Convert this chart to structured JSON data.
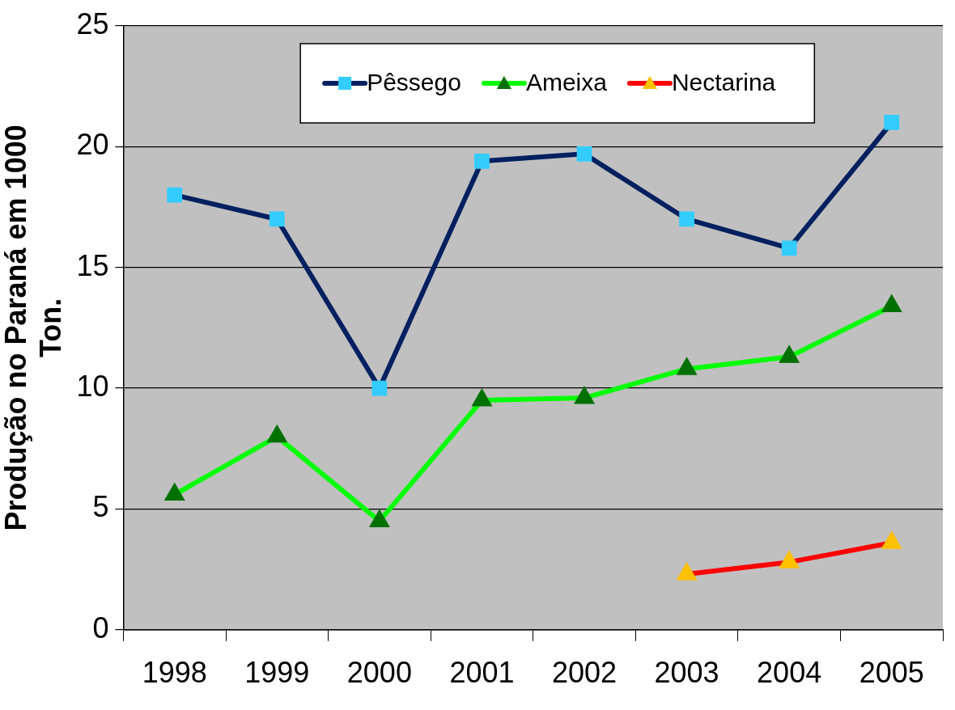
{
  "chart_data": {
    "type": "line",
    "ylabel": "Produção no Paraná em 1000 Ton.",
    "categories": [
      "1998",
      "1999",
      "2000",
      "2001",
      "2002",
      "2003",
      "2004",
      "2005"
    ],
    "series": [
      {
        "name": "Pêssego",
        "color": "#002060",
        "colors": [
          "#33ccff",
          "#33ccff",
          "#33ccff",
          "#33ccff",
          "#33ccff",
          "#33ccff",
          "#33ccff",
          "#33ccff"
        ],
        "marker": "square",
        "values": [
          18,
          17,
          10,
          19.4,
          19.7,
          17,
          15.8,
          21
        ]
      },
      {
        "name": "Ameixa",
        "color": "#00ff00",
        "colors": [
          "#007000",
          "#007000",
          "#007000",
          "#007000",
          "#007000",
          "#007000",
          "#007000",
          "#007000"
        ],
        "marker": "triangle",
        "values": [
          5.6,
          8,
          4.5,
          9.5,
          9.6,
          10.8,
          11.3,
          13.4
        ]
      },
      {
        "name": "Nectarina",
        "color": "#ff0000",
        "colors": [
          null,
          null,
          null,
          null,
          null,
          "#ffc000",
          "#ffc000",
          "#ffc000"
        ],
        "marker": "triangle",
        "values": [
          null,
          null,
          null,
          null,
          null,
          2.3,
          2.8,
          3.6
        ]
      }
    ],
    "ylim": [
      0,
      25
    ],
    "yticks": [
      0,
      5,
      10,
      15,
      20,
      25
    ],
    "grid": "y",
    "legend": "top"
  }
}
